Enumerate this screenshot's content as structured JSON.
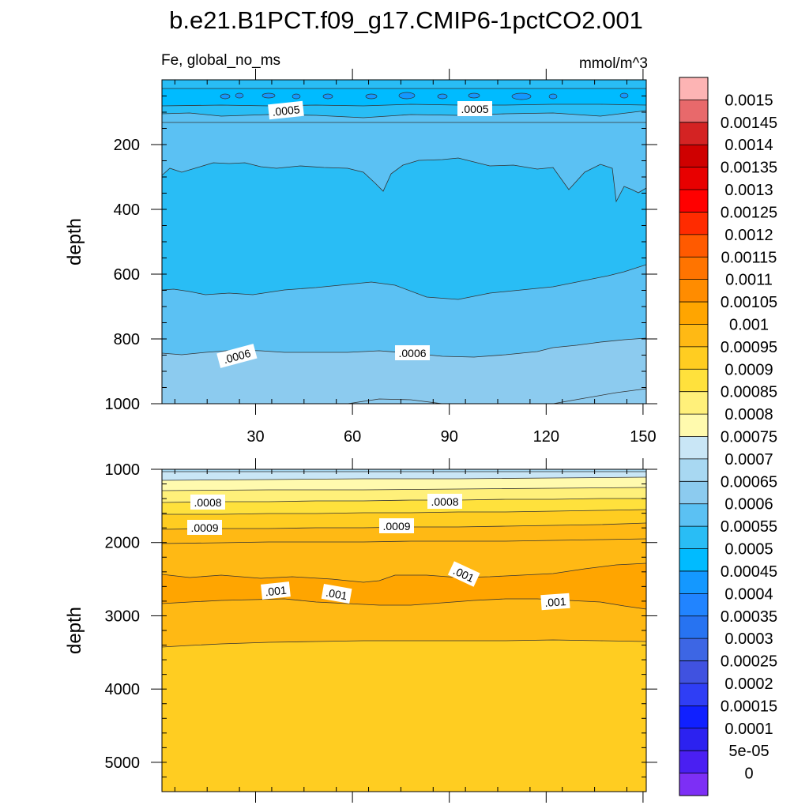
{
  "title": "b.e21.B1PCT.f09_g17.CMIP6-1pctCO2.001",
  "subtitle_left": "Fe, global_no_ms",
  "subtitle_right": "mmol/m^3",
  "chart_data": [
    {
      "type": "heatmap",
      "panel": "top",
      "ylabel": "depth",
      "xlabel": "",
      "xlim": [
        1,
        151
      ],
      "ylim": [
        1000,
        0
      ],
      "yticks": [
        "200",
        "400",
        "600",
        "800",
        "1000"
      ],
      "xticks": [
        "30",
        "60",
        "90",
        "120",
        "150"
      ],
      "bands_top_to_bottom": [
        {
          "depth_range": [
            0,
            30
          ],
          "level": "0.00055"
        },
        {
          "depth_range": [
            30,
            90
          ],
          "level": "0.00045-0.0005"
        },
        {
          "depth_range": [
            90,
            290
          ],
          "level": "0.00055"
        },
        {
          "depth_range": [
            290,
            660
          ],
          "level": "0.0005"
        },
        {
          "depth_range": [
            660,
            850
          ],
          "level": "0.00055"
        },
        {
          "depth_range": [
            850,
            1000
          ],
          "level": "0.0006"
        }
      ],
      "contour_labels": [
        ".0005",
        ".0005",
        ".0006",
        ".0006"
      ]
    },
    {
      "type": "heatmap",
      "panel": "bottom",
      "ylabel": "depth",
      "xlabel": "",
      "xlim": [
        1,
        151
      ],
      "ylim": [
        5400,
        1000
      ],
      "yticks": [
        "1000",
        "2000",
        "3000",
        "4000",
        "5000"
      ],
      "bands_top_to_bottom": [
        {
          "depth_range": [
            1000,
            1100
          ],
          "level": "0.00065"
        },
        {
          "depth_range": [
            1100,
            1250
          ],
          "level": "0.0007"
        },
        {
          "depth_range": [
            1250,
            1600
          ],
          "level": "0.00075-0.0008"
        },
        {
          "depth_range": [
            1600,
            2000
          ],
          "level": "0.00085-0.0009"
        },
        {
          "depth_range": [
            2000,
            2450
          ],
          "level": "0.00095"
        },
        {
          "depth_range": [
            2450,
            2850
          ],
          "level": "0.001"
        },
        {
          "depth_range": [
            2850,
            3400
          ],
          "level": "0.00095"
        },
        {
          "depth_range": [
            3400,
            5400
          ],
          "level": "0.0009"
        }
      ],
      "contour_labels": [
        ".0008",
        ".0008",
        ".0009",
        ".0009",
        ".001",
        ".001",
        ".001",
        ".001"
      ]
    }
  ],
  "colorbar": {
    "labels": [
      "0.0015",
      "0.00145",
      "0.0014",
      "0.00135",
      "0.0013",
      "0.00125",
      "0.0012",
      "0.00115",
      "0.0011",
      "0.00105",
      "0.001",
      "0.00095",
      "0.0009",
      "0.00085",
      "0.0008",
      "0.00075",
      "0.0007",
      "0.00065",
      "0.0006",
      "0.00055",
      "0.0005",
      "0.00045",
      "0.0004",
      "0.00035",
      "0.0003",
      "0.00025",
      "0.0002",
      "0.00015",
      "0.0001",
      "5e-05",
      "0"
    ],
    "colors": [
      "#fdb4b4",
      "#e8696b",
      "#d42323",
      "#cf0000",
      "#e80000",
      "#ff0000",
      "#ff2b00",
      "#ff5a00",
      "#ff7400",
      "#ff8c00",
      "#ffa500",
      "#ffb914",
      "#ffcd21",
      "#ffe13c",
      "#fff07a",
      "#fffaae",
      "#c9e6f6",
      "#a8d8f2",
      "#8ccbef",
      "#5bc1f3",
      "#29bdf5",
      "#00bbff",
      "#1498ff",
      "#2184ff",
      "#2773f1",
      "#3d66e4",
      "#4052e0",
      "#2f3ef5",
      "#1020ff",
      "#2c22f0",
      "#4a1ff2",
      "#7d2ff5"
    ]
  },
  "colors": {
    "top_band_dark": "#29bdf5",
    "top_band_light": "#5bc1f3",
    "top_deep": "#8ccbef",
    "shallow_blue": "#00bbff",
    "bottom_light1": "#a8d8f2",
    "bottom_light2": "#c9e6f6",
    "bottom_yellow1": "#fff07a",
    "bottom_yellow2": "#ffe13c",
    "bottom_gold": "#ffcd21",
    "bottom_orange": "#ffb914",
    "bottom_dark_orange": "#ffa500"
  }
}
